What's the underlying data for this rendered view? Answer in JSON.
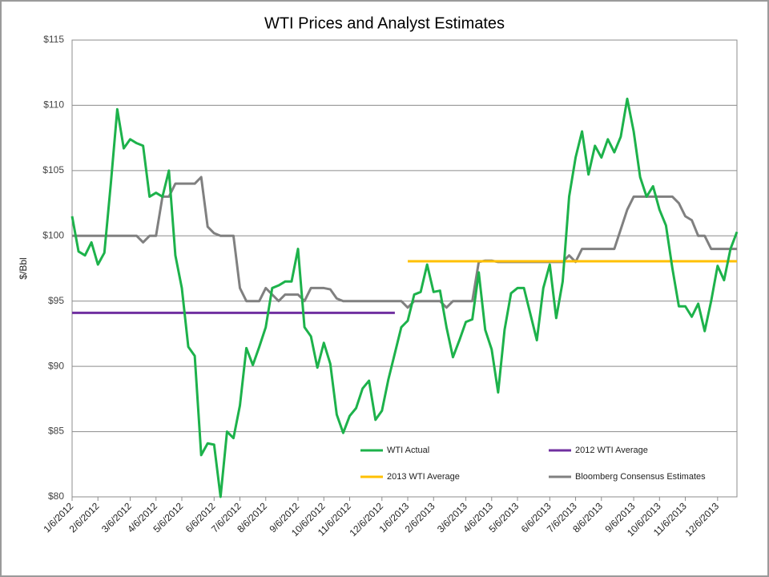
{
  "chart_data": {
    "type": "line",
    "title": "WTI Prices and Analyst Estimates",
    "y_label": "$/Bbl",
    "categories": [
      "1/6/2012",
      null,
      null,
      null,
      "2/6/2012",
      null,
      null,
      null,
      null,
      "3/6/2012",
      null,
      null,
      null,
      "4/6/2012",
      null,
      null,
      null,
      "5/6/2012",
      null,
      null,
      null,
      null,
      "6/6/2012",
      null,
      null,
      null,
      "7/6/2012",
      null,
      null,
      null,
      "8/6/2012",
      null,
      null,
      null,
      null,
      "9/6/2012",
      null,
      null,
      null,
      "10/6/2012",
      null,
      null,
      null,
      "11/6/2012",
      null,
      null,
      null,
      null,
      "12/6/2012",
      null,
      null,
      null,
      "1/6/2013",
      null,
      null,
      null,
      "2/6/2013",
      null,
      null,
      null,
      null,
      "3/6/2013",
      null,
      null,
      null,
      "4/6/2013",
      null,
      null,
      null,
      "5/6/2013",
      null,
      null,
      null,
      null,
      "6/6/2013",
      null,
      null,
      null,
      "7/6/2013",
      null,
      null,
      null,
      "8/6/2013",
      null,
      null,
      null,
      null,
      "9/6/2013",
      null,
      null,
      null,
      "10/6/2013",
      null,
      null,
      null,
      "11/6/2013",
      null,
      null,
      null,
      null,
      "12/6/2013",
      null,
      null,
      null
    ],
    "series": [
      {
        "name": "WTI Actual",
        "color": "#1db24b",
        "width": 3,
        "values": [
          101.5,
          98.8,
          98.5,
          99.5,
          97.8,
          98.7,
          104,
          109.7,
          106.7,
          107.4,
          107.1,
          106.9,
          103,
          103.3,
          103,
          105,
          98.5,
          96,
          91.5,
          90.8,
          83.2,
          84.1,
          84,
          80,
          85,
          84.5,
          87,
          91.4,
          90.1,
          91.5,
          93,
          96,
          96.2,
          96.5,
          96.5,
          99,
          93,
          92.3,
          89.9,
          91.8,
          90.2,
          86.3,
          84.9,
          86.2,
          86.8,
          88.3,
          88.9,
          85.9,
          86.6,
          89,
          91,
          93,
          93.5,
          95.5,
          95.7,
          97.8,
          95.7,
          95.8,
          93,
          90.7,
          92,
          93.4,
          93.6,
          97.2,
          92.8,
          91.3,
          88,
          92.8,
          95.6,
          96,
          96,
          94,
          92,
          96,
          97.8,
          93.7,
          96.5,
          103,
          106,
          108,
          104.7,
          106.9,
          106,
          107.4,
          106.4,
          107.6,
          110.5,
          108,
          104.5,
          103,
          103.8,
          102,
          100.8,
          97.5,
          94.6,
          94.6,
          93.8,
          94.8,
          92.7,
          95,
          97.7,
          96.6,
          99,
          100.3
        ]
      },
      {
        "name": "2012 WTI Average",
        "color": "#7030a0",
        "width": 3,
        "values": [
          94.1,
          94.1,
          94.1,
          94.1,
          94.1,
          94.1,
          94.1,
          94.1,
          94.1,
          94.1,
          94.1,
          94.1,
          94.1,
          94.1,
          94.1,
          94.1,
          94.1,
          94.1,
          94.1,
          94.1,
          94.1,
          94.1,
          94.1,
          94.1,
          94.1,
          94.1,
          94.1,
          94.1,
          94.1,
          94.1,
          94.1,
          94.1,
          94.1,
          94.1,
          94.1,
          94.1,
          94.1,
          94.1,
          94.1,
          94.1,
          94.1,
          94.1,
          94.1,
          94.1,
          94.1,
          94.1,
          94.1,
          94.1,
          94.1,
          94.1,
          94.1,
          null,
          null,
          null,
          null,
          null,
          null,
          null,
          null,
          null,
          null,
          null,
          null,
          null,
          null,
          null,
          null,
          null,
          null,
          null,
          null,
          null,
          null,
          null,
          null,
          null,
          null,
          null,
          null,
          null,
          null,
          null,
          null,
          null,
          null,
          null,
          null,
          null,
          null,
          null,
          null,
          null,
          null,
          null,
          null,
          null,
          null,
          null,
          null,
          null,
          null,
          null,
          null,
          null
        ]
      },
      {
        "name": "2013 WTI Average",
        "color": "#ffc000",
        "width": 3,
        "values": [
          null,
          null,
          null,
          null,
          null,
          null,
          null,
          null,
          null,
          null,
          null,
          null,
          null,
          null,
          null,
          null,
          null,
          null,
          null,
          null,
          null,
          null,
          null,
          null,
          null,
          null,
          null,
          null,
          null,
          null,
          null,
          null,
          null,
          null,
          null,
          null,
          null,
          null,
          null,
          null,
          null,
          null,
          null,
          null,
          null,
          null,
          null,
          null,
          null,
          null,
          null,
          null,
          98.05,
          98.05,
          98.05,
          98.05,
          98.05,
          98.05,
          98.05,
          98.05,
          98.05,
          98.05,
          98.05,
          98.05,
          98.05,
          98.05,
          98.05,
          98.05,
          98.05,
          98.05,
          98.05,
          98.05,
          98.05,
          98.05,
          98.05,
          98.05,
          98.05,
          98.05,
          98.05,
          98.05,
          98.05,
          98.05,
          98.05,
          98.05,
          98.05,
          98.05,
          98.05,
          98.05,
          98.05,
          98.05,
          98.05,
          98.05,
          98.05,
          98.05,
          98.05,
          98.05,
          98.05,
          98.05,
          98.05,
          98.05,
          98.05,
          98.05,
          98.05,
          98.05
        ]
      },
      {
        "name": "Bloomberg Consensus Estimates",
        "color": "#808080",
        "width": 3,
        "values": [
          100,
          100,
          100,
          100,
          100,
          100,
          100,
          100,
          100,
          100,
          100,
          99.5,
          100,
          100,
          103,
          103,
          104,
          104,
          104,
          104,
          104.5,
          100.7,
          100.2,
          100,
          100,
          100,
          96,
          95,
          95,
          95,
          96,
          95.5,
          95,
          95.5,
          95.5,
          95.5,
          95,
          96,
          96,
          96,
          95.9,
          95.2,
          95,
          95,
          95,
          95,
          95,
          95,
          95,
          95,
          95,
          95,
          94.5,
          95,
          95,
          95,
          95,
          95,
          94.5,
          95,
          95,
          95,
          95,
          98,
          98.1,
          98.1,
          98,
          98,
          98,
          98,
          98,
          98,
          98,
          98,
          98,
          98,
          98,
          98.5,
          98,
          99,
          99,
          99,
          99,
          99,
          99,
          100.5,
          102,
          103,
          103,
          103,
          103,
          103,
          103,
          103,
          102.5,
          101.5,
          101.2,
          100,
          100,
          99,
          99,
          99,
          99,
          99
        ]
      }
    ],
    "ylim": [
      80,
      115
    ],
    "yticks": [
      {
        "value": 80,
        "label": "$80"
      },
      {
        "value": 85,
        "label": "$85"
      },
      {
        "value": 90,
        "label": "$90"
      },
      {
        "value": 95,
        "label": "$95"
      },
      {
        "value": 100,
        "label": "$100"
      },
      {
        "value": 105,
        "label": "$105"
      },
      {
        "value": 110,
        "label": "$110"
      },
      {
        "value": 115,
        "label": "$115"
      }
    ],
    "grid": true,
    "legend": "lower right"
  }
}
